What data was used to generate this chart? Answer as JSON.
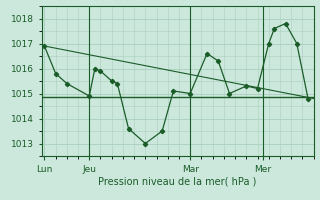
{
  "bg_color": "#cce8dc",
  "grid_color": "#aacfbe",
  "line_color": "#1a5c28",
  "title": "Pression niveau de la mer( hPa )",
  "yticks": [
    1013,
    1014,
    1015,
    1016,
    1017,
    1018
  ],
  "ylim": [
    1012.5,
    1018.5
  ],
  "xtick_labels": [
    "Lun",
    "Jeu",
    "Mar",
    "Mer"
  ],
  "xtick_positions": [
    0,
    8,
    26,
    39
  ],
  "xlim": [
    -0.5,
    48
  ],
  "series1_x": [
    0,
    2,
    4,
    8,
    9,
    10,
    12,
    13,
    15,
    18,
    21,
    23,
    26,
    29,
    31,
    33,
    36,
    38,
    40,
    41,
    43,
    45,
    47
  ],
  "series1_y": [
    1016.9,
    1015.8,
    1015.4,
    1014.9,
    1016.0,
    1015.9,
    1015.5,
    1015.4,
    1013.6,
    1013.0,
    1013.5,
    1015.1,
    1015.0,
    1016.6,
    1016.3,
    1015.0,
    1015.3,
    1015.2,
    1017.0,
    1017.6,
    1017.8,
    1017.0,
    1014.8
  ],
  "flat_line_y": 1014.85,
  "trend_x": [
    0,
    48
  ],
  "trend_y": [
    1016.9,
    1014.8
  ],
  "vline_positions": [
    8,
    26,
    39
  ]
}
